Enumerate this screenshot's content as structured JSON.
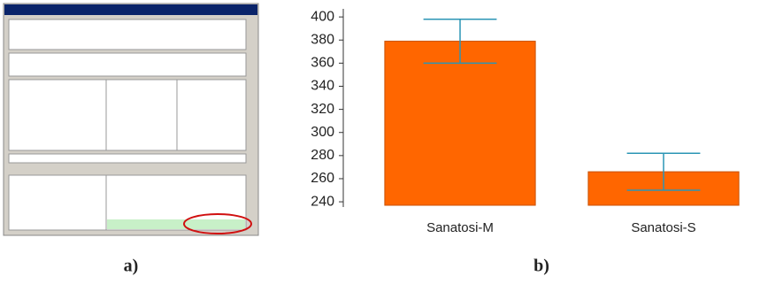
{
  "panels": [
    "a)",
    "b)"
  ],
  "chart_data": {
    "type": "bar",
    "categories": [
      "Sanatosi-M",
      "Sanatosi-S"
    ],
    "values": [
      379,
      266
    ],
    "errors": [
      19,
      16
    ],
    "color": "#ff6600",
    "error_color": "#2b95b5",
    "ylim": [
      237,
      407
    ],
    "yticks": [
      240,
      260,
      280,
      300,
      320,
      340,
      360,
      380,
      400
    ]
  }
}
